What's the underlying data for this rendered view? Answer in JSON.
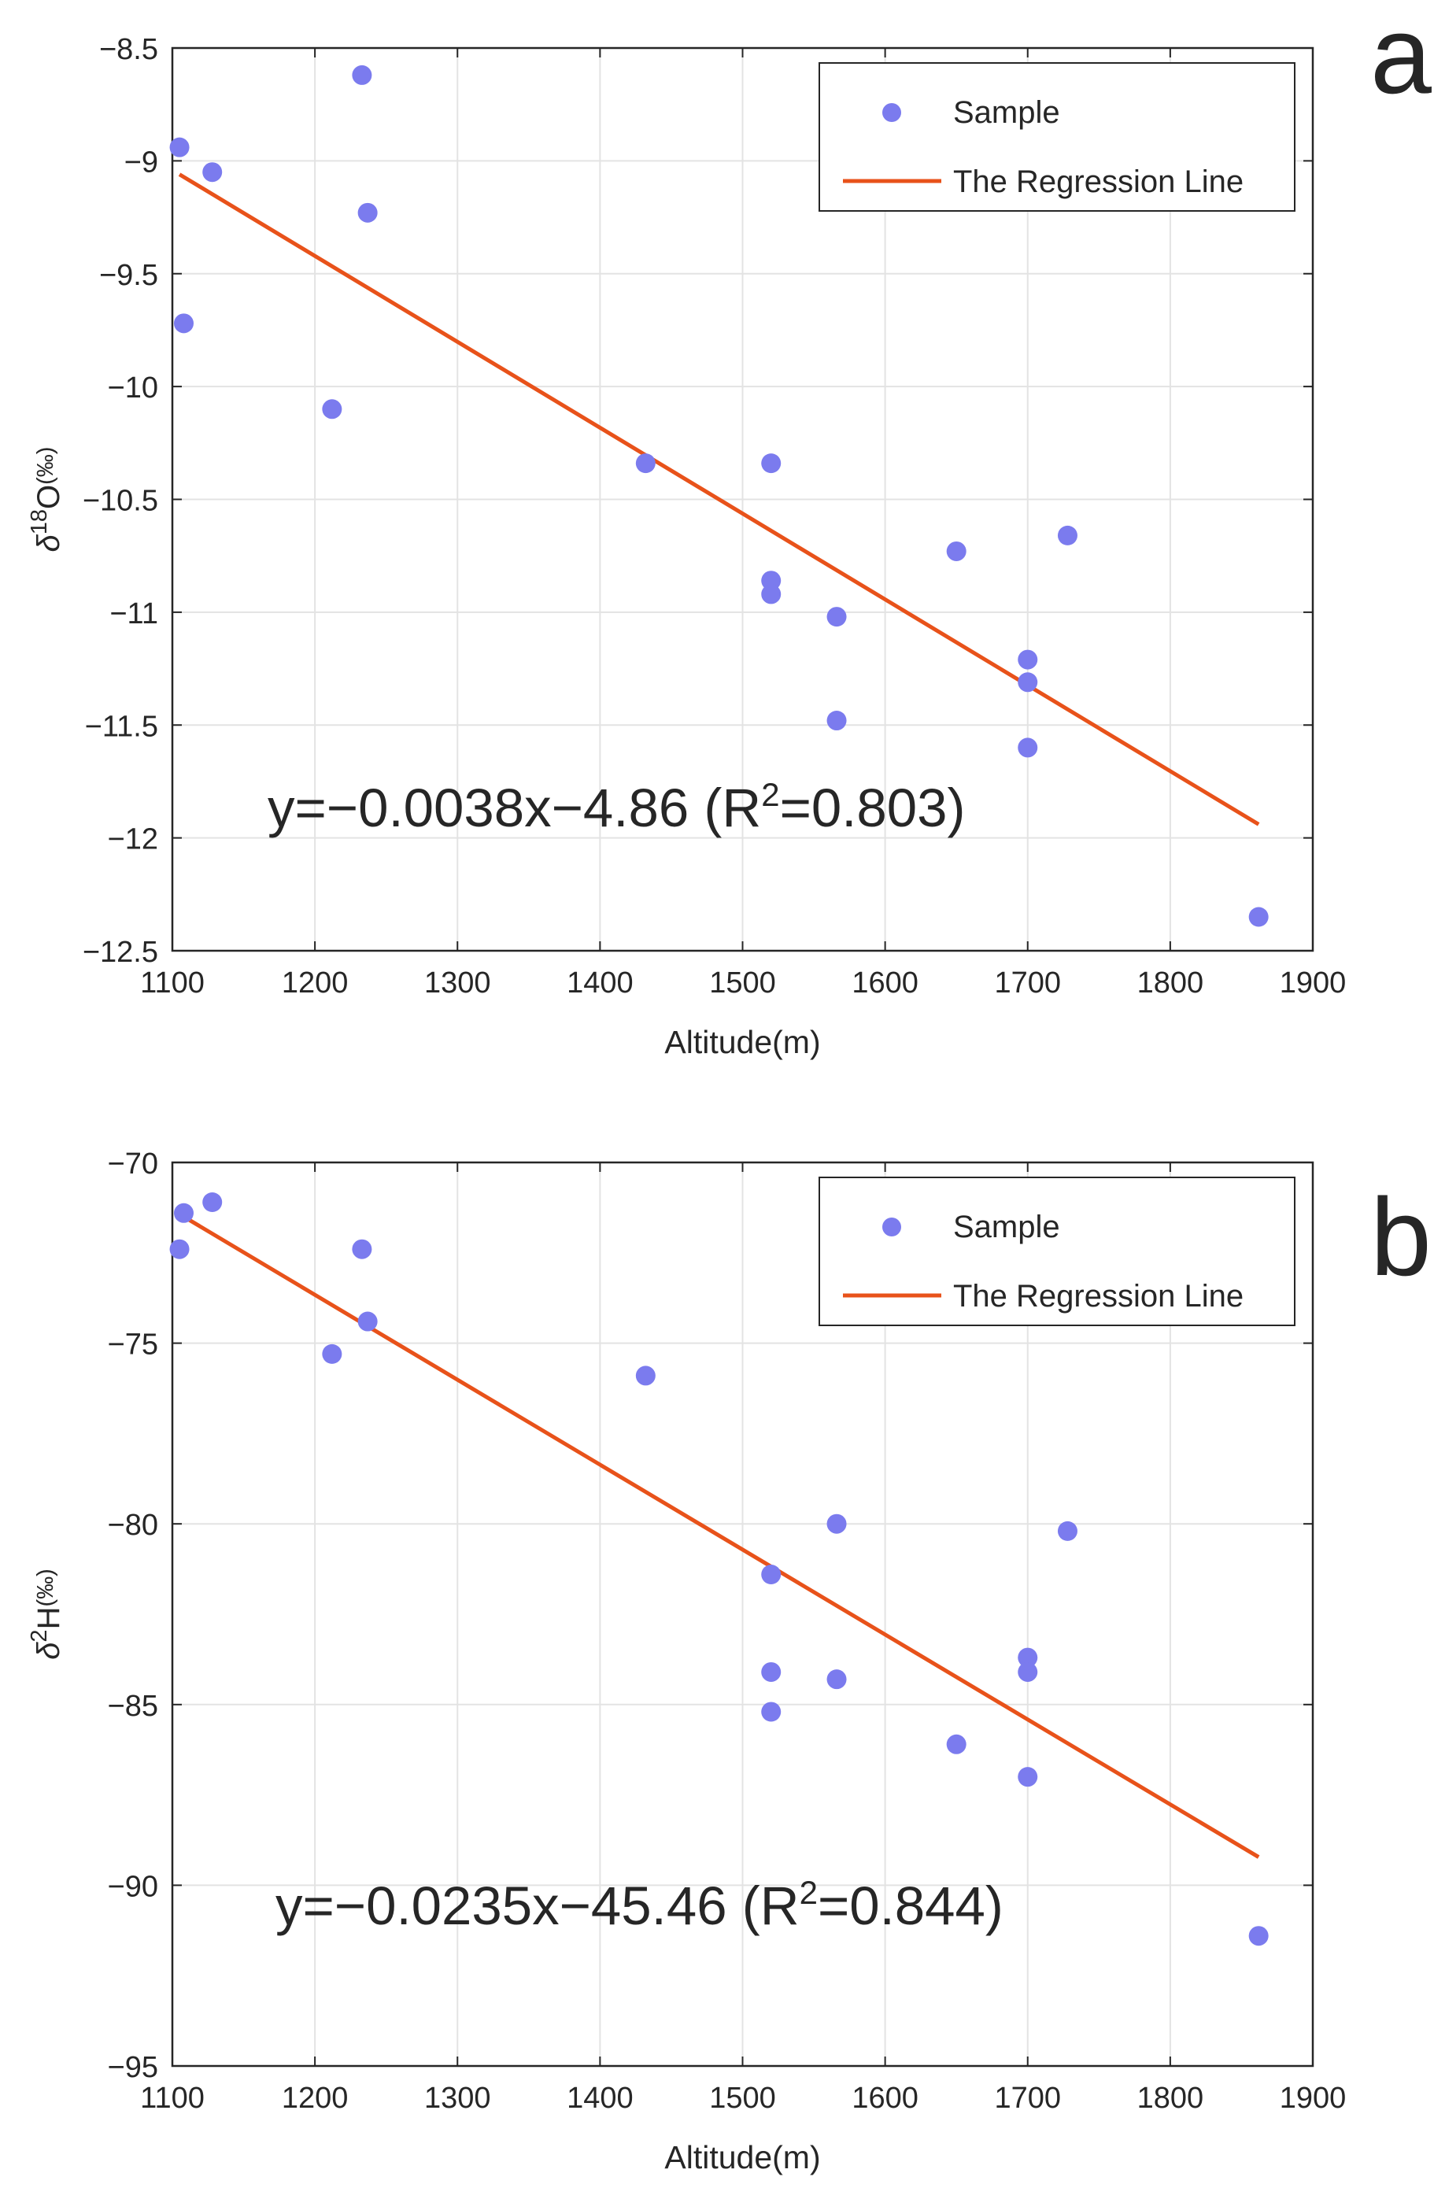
{
  "chart_data": [
    {
      "panel_label": "a",
      "type": "scatter",
      "xlabel": "Altitude(m)",
      "ylabel": {
        "symbol": "δ",
        "sup": "18",
        "main": "O",
        "unit": "(‰)"
      },
      "xlim": [
        1100,
        1900
      ],
      "ylim": [
        -12.5,
        -8.5
      ],
      "x_ticks": [
        1100,
        1200,
        1300,
        1400,
        1500,
        1600,
        1700,
        1800,
        1900
      ],
      "y_ticks": [
        -8.5,
        -9,
        -9.5,
        -10,
        -10.5,
        -11,
        -11.5,
        -12,
        -12.5
      ],
      "y_tick_labels": [
        "−8.5",
        "−9",
        "−9.5",
        "−10",
        "−10.5",
        "−11",
        "−11.5",
        "−12",
        "−12.5"
      ],
      "grid": true,
      "legend_position": "top-right",
      "series": [
        {
          "name": "Sample",
          "kind": "scatter",
          "color": "#7B7BEE",
          "points": [
            [
              1105,
              -8.94
            ],
            [
              1108,
              -9.72
            ],
            [
              1128,
              -9.05
            ],
            [
              1212,
              -10.1
            ],
            [
              1233,
              -8.62
            ],
            [
              1237,
              -9.23
            ],
            [
              1432,
              -10.34
            ],
            [
              1520,
              -10.34
            ],
            [
              1520,
              -10.86
            ],
            [
              1520,
              -10.92
            ],
            [
              1566,
              -11.02
            ],
            [
              1566,
              -11.48
            ],
            [
              1650,
              -10.73
            ],
            [
              1700,
              -11.21
            ],
            [
              1700,
              -11.31
            ],
            [
              1700,
              -11.6
            ],
            [
              1728,
              -10.66
            ],
            [
              1862,
              -12.35
            ]
          ]
        },
        {
          "name": "The Regression Line",
          "kind": "line",
          "color": "#E8521A",
          "points": [
            [
              1105,
              -9.06
            ],
            [
              1862,
              -11.94
            ]
          ]
        }
      ],
      "equation": {
        "lead": "y=−0.0038x−4.86 (R",
        "sup": "2",
        "tail": "=0.803)"
      }
    },
    {
      "panel_label": "b",
      "type": "scatter",
      "xlabel": "Altitude(m)",
      "ylabel": {
        "symbol": "δ",
        "sup": "2",
        "main": "H",
        "unit": "(‰)"
      },
      "xlim": [
        1100,
        1900
      ],
      "ylim": [
        -95,
        -70
      ],
      "x_ticks": [
        1100,
        1200,
        1300,
        1400,
        1500,
        1600,
        1700,
        1800,
        1900
      ],
      "y_ticks": [
        -70,
        -75,
        -80,
        -85,
        -90,
        -95
      ],
      "y_tick_labels": [
        "−70",
        "−75",
        "−80",
        "−85",
        "−90",
        "−95"
      ],
      "grid": true,
      "legend_position": "top-right",
      "series": [
        {
          "name": "Sample",
          "kind": "scatter",
          "color": "#7B7BEE",
          "points": [
            [
              1105,
              -72.4
            ],
            [
              1108,
              -71.4
            ],
            [
              1128,
              -71.1
            ],
            [
              1212,
              -75.3
            ],
            [
              1233,
              -72.4
            ],
            [
              1237,
              -74.4
            ],
            [
              1432,
              -75.9
            ],
            [
              1520,
              -81.4
            ],
            [
              1520,
              -84.1
            ],
            [
              1520,
              -85.2
            ],
            [
              1566,
              -80.0
            ],
            [
              1566,
              -84.3
            ],
            [
              1650,
              -86.1
            ],
            [
              1700,
              -83.7
            ],
            [
              1700,
              -84.1
            ],
            [
              1700,
              -87.0
            ],
            [
              1728,
              -80.2
            ],
            [
              1862,
              -91.4
            ]
          ]
        },
        {
          "name": "The Regression Line",
          "kind": "line",
          "color": "#E8521A",
          "points": [
            [
              1105,
              -71.43
            ],
            [
              1862,
              -89.22
            ]
          ]
        }
      ],
      "equation": {
        "lead": "y=−0.0235x−45.46 (R",
        "sup": "2",
        "tail": "=0.844)"
      }
    }
  ]
}
